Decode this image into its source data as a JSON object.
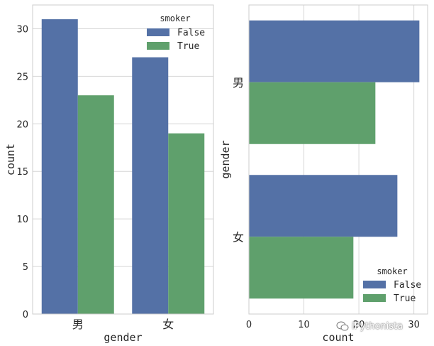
{
  "colors": {
    "False": "#5471A6",
    "True": "#5FA06C",
    "axes_edge": "#CCCCCC",
    "grid": "#D6D6D6",
    "text": "#262626"
  },
  "chart_data": [
    {
      "type": "bar",
      "orientation": "vertical",
      "categories": [
        "男",
        "女"
      ],
      "series": [
        {
          "name": "False",
          "values": [
            31,
            27
          ]
        },
        {
          "name": "True",
          "values": [
            23,
            19
          ]
        }
      ],
      "xlabel": "gender",
      "ylabel": "count",
      "ylim": [
        0,
        32.5
      ],
      "yticks": [
        0,
        5,
        10,
        15,
        20,
        25,
        30
      ],
      "grid": "y",
      "legend": {
        "title": "smoker",
        "placement": "top-right",
        "entries": [
          "False",
          "True"
        ]
      }
    },
    {
      "type": "bar",
      "orientation": "horizontal",
      "categories": [
        "男",
        "女"
      ],
      "series": [
        {
          "name": "False",
          "values": [
            31,
            27
          ]
        },
        {
          "name": "True",
          "values": [
            23,
            19
          ]
        }
      ],
      "xlabel": "count",
      "ylabel": "gender",
      "xlim": [
        0,
        32.5
      ],
      "xticks": [
        0,
        10,
        20,
        30
      ],
      "grid": "x",
      "legend": {
        "title": "smoker",
        "placement": "bottom-right",
        "entries": [
          "False",
          "True"
        ]
      }
    }
  ],
  "watermark": {
    "text": "iPythonista",
    "icon": "wechat-logo-icon"
  }
}
